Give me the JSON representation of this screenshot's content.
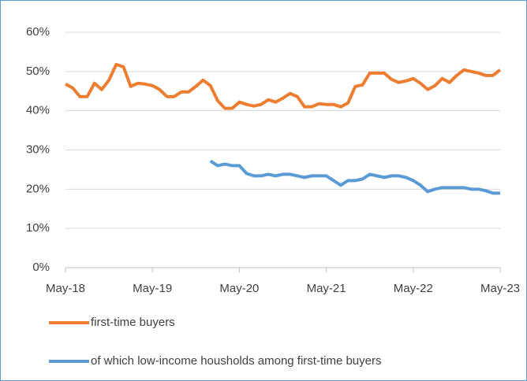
{
  "chart_data": {
    "type": "line",
    "categories": [
      "May-18",
      null,
      null,
      null,
      null,
      null,
      null,
      null,
      null,
      null,
      null,
      null,
      "May-19",
      null,
      null,
      null,
      null,
      null,
      null,
      null,
      null,
      null,
      null,
      null,
      "May-20",
      null,
      null,
      null,
      null,
      null,
      null,
      null,
      null,
      null,
      null,
      null,
      "May-21",
      null,
      null,
      null,
      null,
      null,
      null,
      null,
      null,
      null,
      null,
      null,
      "May-22",
      null,
      null,
      null,
      null,
      null,
      null,
      null,
      null,
      null,
      null,
      null,
      "May-23"
    ],
    "series": [
      {
        "name": "first-time buyers",
        "color": "#ed7d31",
        "values": [
          46.8,
          45.8,
          43.6,
          43.6,
          47,
          45.4,
          47.8,
          51.8,
          51.2,
          46.2,
          47,
          46.8,
          46.4,
          45.4,
          43.6,
          43.6,
          44.8,
          44.8,
          46.2,
          47.8,
          46.4,
          42.6,
          40.6,
          40.6,
          42.2,
          41.6,
          41.2,
          41.6,
          42.8,
          42.2,
          43.2,
          44.4,
          43.6,
          41,
          41,
          41.8,
          41.6,
          41.6,
          41,
          42,
          46.2,
          46.6,
          49.6,
          49.6,
          49.6,
          48,
          47.2,
          47.6,
          48.2,
          47,
          45.4,
          46.4,
          48.2,
          47.2,
          49,
          50.4,
          50,
          49.6,
          49,
          49,
          50.4
        ]
      },
      {
        "name": "of which low-income housholds among first-time buyers",
        "color": "#5b9bd5",
        "values": [
          null,
          null,
          null,
          null,
          null,
          null,
          null,
          null,
          null,
          null,
          null,
          null,
          null,
          null,
          null,
          null,
          null,
          null,
          null,
          null,
          27.2,
          26,
          26.4,
          26,
          26,
          24,
          23.4,
          23.4,
          23.8,
          23.4,
          23.8,
          23.8,
          23.4,
          23,
          23.4,
          23.4,
          23.4,
          22.2,
          21,
          22.2,
          22.2,
          22.6,
          23.8,
          23.4,
          23,
          23.4,
          23.4,
          23,
          22.2,
          21,
          19.4,
          20,
          20.4,
          20.4,
          20.4,
          20.4,
          20,
          20,
          19.6,
          19,
          19
        ]
      }
    ],
    "ylim": [
      0,
      60
    ],
    "yticks": [
      {
        "value": 0,
        "label": "0%"
      },
      {
        "value": 10,
        "label": "10%"
      },
      {
        "value": 20,
        "label": "20%"
      },
      {
        "value": 30,
        "label": "30%"
      },
      {
        "value": 40,
        "label": "40%"
      },
      {
        "value": 50,
        "label": "50%"
      },
      {
        "value": 60,
        "label": "60%"
      }
    ],
    "grid": true,
    "legend": "bottom"
  }
}
